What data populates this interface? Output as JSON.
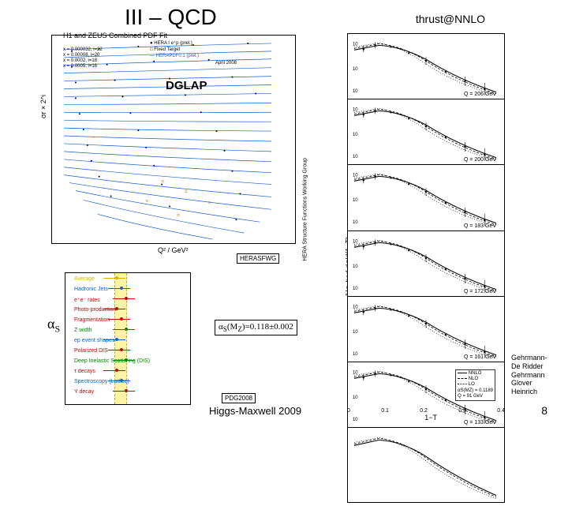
{
  "title": "III – QCD",
  "thrust_label": "thrust@NNLO",
  "footer": "Higgs-Maxwell 2009",
  "page": "8",
  "credit_lines": [
    "Gehrmann-",
    "De Ridder",
    "Gehrmann",
    "Glover",
    "Heinrich"
  ],
  "pdf_plot": {
    "title": "H1 and ZEUS Combined PDF Fit",
    "dglap_label": "DGLAP",
    "yaxis": "σr × 2^i",
    "xaxis": "Q² / GeV²",
    "right_axis": "HERA Structure Functions Working Group",
    "date_stamp": "April 2008",
    "legend": [
      "● HERA I e⁺p (prel.)",
      "□ Fixed Target",
      "— HERAPDF0.1 (prel.)"
    ],
    "x_labels": [
      "x = 0.000032, i=22",
      "x = 0.00005, i=21",
      "x = 0.00008, i=20",
      "x = 0.00013, i=19",
      "x = 0.0002, i=18",
      "x = 0.00032, i=17",
      "x = 0.0005, i=16",
      "x = 0.0008, i=15",
      "x = 0.0013, i=14",
      "x = 0.0020, i=13",
      "x = 0.0032, i=12",
      "x = 0.005, i=11",
      "x = 0.008, i=10",
      "x = 0.013, i=9",
      "x = 0.02, i=8",
      "x = 0.032, i=7",
      "x = 0.05, i=6",
      "x = 0.08, i=5",
      "x = 0.13, i=4",
      "x = 0.18, i=3",
      "x = 0.25, i=2",
      "x = 0.40, i=1",
      "x = 0.65, i=0"
    ],
    "yticks": [
      "10⁻²",
      "1",
      "10²",
      "10⁴",
      "10⁶"
    ],
    "xticks": [
      "1",
      "10",
      "10²",
      "10³",
      "10⁴",
      "10⁵"
    ],
    "herasfwg": "HERASFWG",
    "line_color": "#1860c8",
    "point_color": "#000000",
    "alt_point_color": "#d08000"
  },
  "alphas_plot": {
    "symbol": "αS",
    "value_label": "αS(MZ)=0.118±0.002",
    "pdg": "PDG2008",
    "band_color": "#fff4a3",
    "xaxis": "αS(MZ)",
    "xticks": [
      "0.1",
      "0.12",
      "0.14"
    ],
    "rows": [
      {
        "label": "Average",
        "color": "#e0b000"
      },
      {
        "label": "Hadronic Jets",
        "color": "#0066cc"
      },
      {
        "label": "e⁺e⁻ rates",
        "color": "#cc0000"
      },
      {
        "label": "Photo-production",
        "color": "#cc0000"
      },
      {
        "label": "Fragmentation",
        "color": "#cc0000"
      },
      {
        "label": "Z width",
        "color": "#008800"
      },
      {
        "label": "ep event shapes",
        "color": "#0066cc"
      },
      {
        "label": "Polarized DIS",
        "color": "#cc0000"
      },
      {
        "label": "Deep Inelastic Scattering (DIS)",
        "color": "#008800"
      },
      {
        "label": "τ decays",
        "color": "#cc0000"
      },
      {
        "label": "Spectroscopy (Lattice)",
        "color": "#0066cc"
      },
      {
        "label": "Υ decay",
        "color": "#cc0000"
      }
    ]
  },
  "thrust": {
    "yaxis": "1/σ_had dσ/d(1−T)",
    "xaxis": "1−T",
    "xticks": [
      "0",
      "0.1",
      "0.2",
      "0.3",
      "0.4"
    ],
    "panels": [
      {
        "q": "Q = 206 GeV"
      },
      {
        "q": "Q = 200 GeV"
      },
      {
        "q": "Q = 183 GeV"
      },
      {
        "q": "Q = 172 GeV"
      },
      {
        "q": "Q = 161 GeV"
      },
      {
        "q": "Q = 133 GeV"
      }
    ],
    "legend": [
      {
        "label": "NNLO",
        "style": "solid",
        "color": "#000000"
      },
      {
        "label": "NLO",
        "style": "dashed",
        "color": "#000000"
      },
      {
        "label": "LO",
        "style": "dotted",
        "color": "#000000"
      }
    ],
    "legend_extra": [
      "αS(MZ) = 0.1189",
      "Q = 91 GeV"
    ],
    "point_color": "#000000",
    "curve_color": "#000000"
  },
  "colors": {
    "background": "#ffffff",
    "text": "#000000"
  }
}
